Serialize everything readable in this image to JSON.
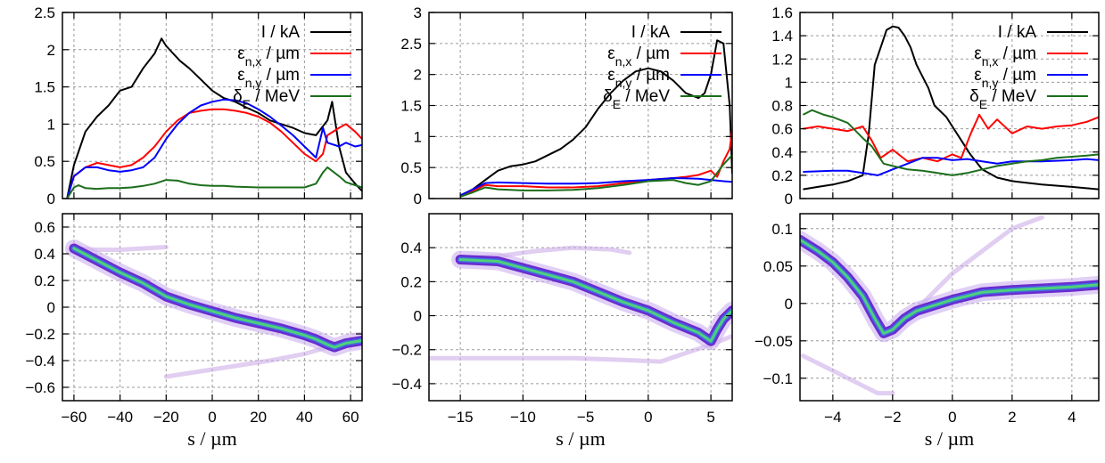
{
  "chart_data": [
    {
      "type": "line",
      "panel": "top-left",
      "xlim": [
        -65,
        65
      ],
      "ylim": [
        0,
        2.5
      ],
      "xticks": [
        -60,
        -40,
        -20,
        0,
        20,
        40,
        60
      ],
      "yticks": [
        "0",
        "0.5",
        "1",
        "1.5",
        "2",
        "2.5"
      ],
      "grid": true,
      "legend_position": "top-right",
      "series": [
        {
          "name": "I / kA",
          "color": "#000000",
          "x": [
            -63,
            -60,
            -55,
            -50,
            -45,
            -40,
            -35,
            -30,
            -25,
            -22,
            -20,
            -17,
            -14,
            -10,
            -5,
            0,
            5,
            10,
            15,
            20,
            25,
            30,
            35,
            40,
            45,
            50,
            52,
            55,
            58,
            62,
            65
          ],
          "y": [
            0,
            0.45,
            0.9,
            1.1,
            1.25,
            1.45,
            1.5,
            1.75,
            1.95,
            2.15,
            2.05,
            1.95,
            1.85,
            1.75,
            1.6,
            1.45,
            1.35,
            1.3,
            1.22,
            1.15,
            1.05,
            1.0,
            0.95,
            0.88,
            0.85,
            1.05,
            1.3,
            0.7,
            0.35,
            0.2,
            0.1
          ]
        },
        {
          "name": "ε_{n,x} / µm",
          "color": "#ff0000",
          "x": [
            -63,
            -60,
            -55,
            -50,
            -45,
            -40,
            -35,
            -30,
            -25,
            -20,
            -15,
            -10,
            -5,
            0,
            5,
            10,
            15,
            20,
            25,
            30,
            35,
            40,
            45,
            48,
            50,
            55,
            58,
            62,
            65
          ],
          "y": [
            0,
            0.3,
            0.42,
            0.48,
            0.45,
            0.42,
            0.45,
            0.55,
            0.7,
            0.9,
            1.05,
            1.15,
            1.18,
            1.2,
            1.2,
            1.18,
            1.15,
            1.1,
            1.02,
            0.9,
            0.75,
            0.6,
            0.5,
            0.6,
            0.85,
            0.95,
            1.0,
            0.9,
            0.8
          ]
        },
        {
          "name": "ε_{n,y} / µm",
          "color": "#0000ff",
          "x": [
            -63,
            -60,
            -55,
            -50,
            -45,
            -40,
            -35,
            -30,
            -25,
            -20,
            -15,
            -10,
            -5,
            0,
            5,
            10,
            15,
            20,
            25,
            30,
            35,
            40,
            45,
            48,
            50,
            55,
            58,
            62,
            65
          ],
          "y": [
            0,
            0.3,
            0.42,
            0.42,
            0.38,
            0.36,
            0.38,
            0.42,
            0.55,
            0.8,
            1.0,
            1.15,
            1.25,
            1.3,
            1.33,
            1.32,
            1.28,
            1.2,
            1.1,
            0.98,
            0.85,
            0.7,
            0.55,
            0.95,
            0.75,
            0.7,
            0.75,
            0.7,
            0.72
          ]
        },
        {
          "name": "δ_E / MeV",
          "color": "#1b6e1b",
          "x": [
            -63,
            -60,
            -58,
            -55,
            -50,
            -45,
            -40,
            -35,
            -30,
            -25,
            -20,
            -15,
            -10,
            -5,
            0,
            5,
            10,
            20,
            30,
            40,
            45,
            48,
            50,
            55,
            58,
            62,
            65
          ],
          "y": [
            0,
            0.15,
            0.18,
            0.14,
            0.13,
            0.14,
            0.14,
            0.15,
            0.17,
            0.2,
            0.25,
            0.24,
            0.2,
            0.18,
            0.17,
            0.17,
            0.16,
            0.15,
            0.15,
            0.15,
            0.2,
            0.35,
            0.42,
            0.3,
            0.22,
            0.18,
            0.15
          ]
        }
      ]
    },
    {
      "type": "line",
      "panel": "top-middle",
      "xlim": [
        -17.5,
        6.7
      ],
      "ylim": [
        0,
        3
      ],
      "xticks": [
        -15,
        -10,
        -5,
        0,
        5
      ],
      "yticks": [
        "0",
        "0.5",
        "1",
        "1.5",
        "2",
        "2.5",
        "3"
      ],
      "grid": true,
      "legend_position": "top-right",
      "series": [
        {
          "name": "I / kA",
          "color": "#000000",
          "x": [
            -15,
            -14,
            -13,
            -12,
            -11,
            -10,
            -9,
            -8,
            -7,
            -6,
            -5,
            -4,
            -3,
            -2,
            -1,
            0,
            1,
            2,
            3,
            4,
            4.5,
            5,
            5.5,
            6,
            6.5,
            6.7
          ],
          "y": [
            0.05,
            0.15,
            0.3,
            0.45,
            0.52,
            0.55,
            0.6,
            0.7,
            0.8,
            0.95,
            1.15,
            1.45,
            1.7,
            1.9,
            2.05,
            2.1,
            2.05,
            1.9,
            1.7,
            1.62,
            1.7,
            2.0,
            2.55,
            2.5,
            1.5,
            0.4
          ]
        },
        {
          "name": "ε_{n,x} / µm",
          "color": "#ff0000",
          "x": [
            -15,
            -14,
            -13,
            -12,
            -10,
            -8,
            -6,
            -4,
            -2,
            0,
            2,
            3,
            4,
            5,
            5.5,
            6,
            6.5,
            6.7
          ],
          "y": [
            0.05,
            0.12,
            0.22,
            0.2,
            0.2,
            0.18,
            0.18,
            0.2,
            0.25,
            0.3,
            0.33,
            0.35,
            0.38,
            0.45,
            0.35,
            0.6,
            0.8,
            1.1
          ]
        },
        {
          "name": "ε_{n,y} / µm",
          "color": "#0000ff",
          "x": [
            -15,
            -14,
            -13,
            -12,
            -10,
            -8,
            -6,
            -4,
            -2,
            0,
            2,
            4,
            5,
            6,
            6.7
          ],
          "y": [
            0.05,
            0.15,
            0.25,
            0.26,
            0.25,
            0.24,
            0.24,
            0.25,
            0.28,
            0.3,
            0.33,
            0.32,
            0.3,
            0.28,
            0.27
          ]
        },
        {
          "name": "δ_E / MeV",
          "color": "#1b6e1b",
          "x": [
            -15,
            -14,
            -13,
            -12,
            -10,
            -8,
            -6,
            -4,
            -2,
            0,
            2,
            3,
            4,
            5,
            6,
            6.7
          ],
          "y": [
            0.03,
            0.1,
            0.18,
            0.15,
            0.13,
            0.13,
            0.14,
            0.17,
            0.22,
            0.28,
            0.3,
            0.25,
            0.22,
            0.28,
            0.55,
            0.7
          ]
        }
      ]
    },
    {
      "type": "line",
      "panel": "top-right",
      "xlim": [
        -5.1,
        4.9
      ],
      "ylim": [
        0,
        1.6
      ],
      "xticks": [
        -4,
        -2,
        0,
        2,
        4
      ],
      "yticks": [
        "0",
        "0.2",
        "0.4",
        "0.6",
        "0.8",
        "1",
        "1.2",
        "1.4",
        "1.6"
      ],
      "grid": true,
      "legend_position": "top-right",
      "series": [
        {
          "name": "I / kA",
          "color": "#000000",
          "x": [
            -5,
            -4.5,
            -4,
            -3.5,
            -3,
            -2.8,
            -2.6,
            -2.4,
            -2.2,
            -2,
            -1.8,
            -1.6,
            -1.4,
            -1.2,
            -1,
            -0.8,
            -0.6,
            -0.4,
            -0.2,
            0,
            0.3,
            0.6,
            1,
            1.5,
            2,
            3,
            4,
            4.9
          ],
          "y": [
            0.08,
            0.1,
            0.12,
            0.15,
            0.2,
            0.55,
            1.15,
            1.3,
            1.45,
            1.48,
            1.47,
            1.4,
            1.3,
            1.15,
            1.05,
            0.95,
            0.8,
            0.75,
            0.7,
            0.62,
            0.5,
            0.38,
            0.25,
            0.18,
            0.15,
            0.12,
            0.1,
            0.08
          ]
        },
        {
          "name": "ε_{n,x} / µm",
          "color": "#ff0000",
          "x": [
            -5,
            -4.5,
            -4,
            -3.5,
            -3,
            -2.7,
            -2.4,
            -2,
            -1.5,
            -1,
            -0.5,
            0,
            0.3,
            0.6,
            0.9,
            1.2,
            1.5,
            2,
            2.5,
            3,
            3.5,
            4,
            4.5,
            4.9
          ],
          "y": [
            0.6,
            0.62,
            0.6,
            0.58,
            0.62,
            0.5,
            0.35,
            0.42,
            0.32,
            0.35,
            0.32,
            0.38,
            0.35,
            0.55,
            0.72,
            0.6,
            0.68,
            0.56,
            0.62,
            0.6,
            0.62,
            0.63,
            0.66,
            0.7
          ]
        },
        {
          "name": "ε_{n,y} / µm",
          "color": "#0000ff",
          "x": [
            -5,
            -4,
            -3.5,
            -3,
            -2.5,
            -2,
            -1.5,
            -1,
            -0.5,
            0,
            0.5,
            1,
            1.5,
            2,
            3,
            4,
            4.5,
            4.9
          ],
          "y": [
            0.23,
            0.24,
            0.24,
            0.22,
            0.2,
            0.25,
            0.3,
            0.35,
            0.35,
            0.33,
            0.34,
            0.32,
            0.3,
            0.32,
            0.32,
            0.33,
            0.34,
            0.33
          ]
        },
        {
          "name": "δ_E / MeV",
          "color": "#1b6e1b",
          "x": [
            -5,
            -4.7,
            -4.3,
            -4,
            -3.5,
            -3,
            -2.7,
            -2.3,
            -2,
            -1.5,
            -1,
            -0.5,
            0,
            0.5,
            1,
            1.5,
            2,
            2.5,
            3,
            3.5,
            4,
            4.5,
            4.9
          ],
          "y": [
            0.72,
            0.76,
            0.72,
            0.7,
            0.65,
            0.52,
            0.45,
            0.3,
            0.28,
            0.25,
            0.24,
            0.22,
            0.2,
            0.22,
            0.25,
            0.28,
            0.3,
            0.32,
            0.33,
            0.35,
            0.36,
            0.37,
            0.38
          ]
        }
      ]
    },
    {
      "type": "heatmap",
      "panel": "bottom-left",
      "xlim": [
        -65,
        65
      ],
      "ylim": [
        -0.7,
        0.7
      ],
      "xticks": [
        -60,
        -40,
        -20,
        0,
        20,
        40,
        60
      ],
      "yticks": [
        "-0.6",
        "-0.4",
        "-0.2",
        "0",
        "0.2",
        "0.4",
        "0.6"
      ],
      "xlabel": "s / µm",
      "grid": true,
      "ridge": {
        "x": [
          -60,
          -50,
          -40,
          -30,
          -20,
          -10,
          0,
          10,
          20,
          30,
          40,
          45,
          50,
          53,
          58,
          65
        ],
        "y": [
          0.44,
          0.35,
          0.26,
          0.18,
          0.08,
          0.02,
          -0.03,
          -0.08,
          -0.12,
          -0.16,
          -0.21,
          -0.24,
          -0.28,
          -0.3,
          -0.27,
          -0.25
        ]
      },
      "faint_branches": [
        {
          "x": [
            -60,
            -50,
            -40,
            -30,
            -20
          ],
          "y": [
            0.44,
            0.43,
            0.43,
            0.44,
            0.45
          ]
        },
        {
          "x": [
            -20,
            -5,
            10,
            25,
            40,
            50,
            58
          ],
          "y": [
            -0.52,
            -0.48,
            -0.44,
            -0.4,
            -0.35,
            -0.3,
            -0.27
          ]
        }
      ]
    },
    {
      "type": "heatmap",
      "panel": "bottom-middle",
      "xlim": [
        -17.5,
        6.7
      ],
      "ylim": [
        -0.5,
        0.6
      ],
      "xticks": [
        -15,
        -10,
        -5,
        0,
        5
      ],
      "yticks": [
        "-0.4",
        "-0.2",
        "0",
        "0.2",
        "0.4"
      ],
      "xlabel": "s / µm",
      "grid": true,
      "ridge": {
        "x": [
          -15,
          -12,
          -10,
          -8,
          -6,
          -4,
          -2,
          0,
          2,
          4,
          5,
          5.5,
          6,
          6.7
        ],
        "y": [
          0.33,
          0.32,
          0.28,
          0.24,
          0.2,
          0.14,
          0.08,
          0.03,
          -0.04,
          -0.1,
          -0.15,
          -0.08,
          -0.02,
          0.03
        ]
      },
      "faint_branches": [
        {
          "x": [
            -15,
            -12,
            -9,
            -6,
            -3,
            -1.5
          ],
          "y": [
            0.34,
            0.35,
            0.38,
            0.4,
            0.39,
            0.37
          ]
        },
        {
          "x": [
            -17.5,
            -14,
            -10,
            -6,
            -2,
            1,
            3,
            5,
            6.7
          ],
          "y": [
            -0.25,
            -0.25,
            -0.25,
            -0.25,
            -0.26,
            -0.27,
            -0.22,
            -0.17,
            -0.12
          ]
        }
      ]
    },
    {
      "type": "heatmap",
      "panel": "bottom-right",
      "xlim": [
        -5.1,
        4.9
      ],
      "ylim": [
        -0.13,
        0.12
      ],
      "xticks": [
        -4,
        -2,
        0,
        2,
        4
      ],
      "yticks": [
        "-0.1",
        "-0.05",
        "0",
        "0.05",
        "0.1"
      ],
      "xlabel": "s / µm",
      "grid": true,
      "ridge": {
        "x": [
          -5.1,
          -4.5,
          -4,
          -3.5,
          -3,
          -2.6,
          -2.3,
          -2,
          -1.6,
          -1.2,
          -0.8,
          -0.4,
          0,
          0.5,
          1,
          2,
          3,
          4,
          4.9
        ],
        "y": [
          0.085,
          0.07,
          0.055,
          0.035,
          0.01,
          -0.02,
          -0.04,
          -0.035,
          -0.02,
          -0.01,
          -0.005,
          0,
          0.005,
          0.01,
          0.015,
          0.018,
          0.02,
          0.022,
          0.025
        ]
      },
      "faint_branches": [
        {
          "x": [
            -5,
            -4,
            -3,
            -2.5,
            -2
          ],
          "y": [
            -0.07,
            -0.09,
            -0.11,
            -0.12,
            -0.12
          ]
        },
        {
          "x": [
            -2,
            -1,
            0,
            1,
            2,
            3
          ],
          "y": [
            -0.04,
            0.0,
            0.04,
            0.07,
            0.1,
            0.115
          ]
        }
      ]
    }
  ]
}
